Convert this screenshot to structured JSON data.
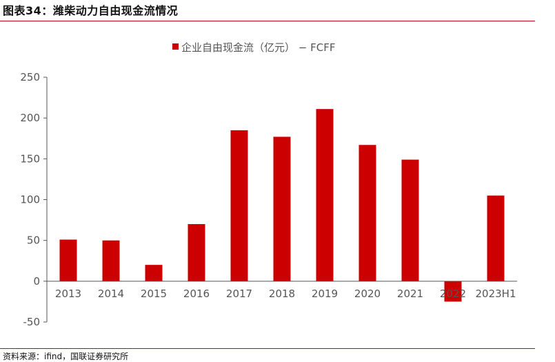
{
  "figure": {
    "title": "图表34：潍柴动力自由现金流情况",
    "source": "资料来源：ifind，国联证券研究所"
  },
  "colors": {
    "accent": "#c9001b",
    "bar": "#cc0000",
    "axis": "#555555"
  },
  "chart_data": {
    "type": "bar",
    "title": "",
    "xlabel": "",
    "ylabel": "",
    "categories": [
      "2013",
      "2014",
      "2015",
      "2016",
      "2017",
      "2018",
      "2019",
      "2020",
      "2021",
      "2022",
      "2023H1"
    ],
    "series": [
      {
        "name": "企业自由现金流（亿元） − FCFF",
        "values": [
          51,
          50,
          20,
          70,
          185,
          177,
          211,
          167,
          149,
          -25,
          105
        ]
      }
    ],
    "ylim": [
      -50,
      250
    ],
    "yticks": [
      -50,
      0,
      50,
      100,
      150,
      200,
      250
    ],
    "legend_position": "top-center",
    "grid": false
  }
}
